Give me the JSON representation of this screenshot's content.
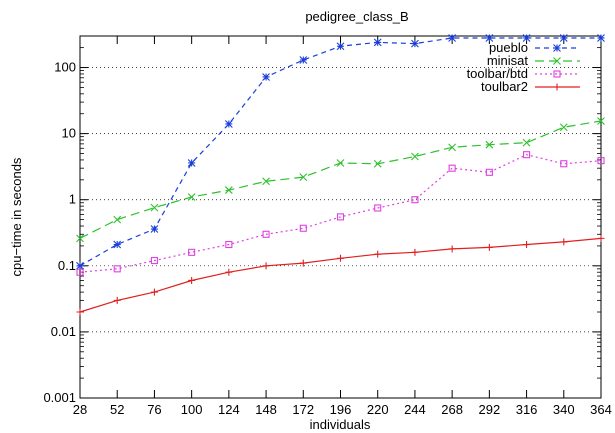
{
  "chart_data": {
    "type": "line",
    "title": "pedigree_class_B",
    "xlabel": "individuals",
    "ylabel": "cpu−time in seconds",
    "yscale": "log",
    "ylim": [
      0.001,
      300
    ],
    "x_ticks": [
      28,
      52,
      76,
      100,
      124,
      148,
      172,
      196,
      220,
      244,
      268,
      292,
      316,
      340,
      364
    ],
    "y_ticks": [
      {
        "value": 0.001,
        "label": "0.001"
      },
      {
        "value": 0.01,
        "label": "0.01"
      },
      {
        "value": 0.1,
        "label": "0.1"
      },
      {
        "value": 1,
        "label": "1"
      },
      {
        "value": 10,
        "label": "10"
      },
      {
        "value": 100,
        "label": "100"
      }
    ],
    "grid": "horizontal dotted",
    "legend_position": "top-right",
    "x": [
      28,
      52,
      76,
      100,
      124,
      148,
      172,
      196,
      220,
      244,
      268,
      292,
      316,
      340,
      364
    ],
    "series": [
      {
        "name": "pueblo",
        "color": "#1a3fd9",
        "dash": "5,4",
        "marker": "asterisk",
        "values": [
          0.1,
          0.21,
          0.36,
          3.6,
          14,
          72,
          130,
          210,
          240,
          230,
          280,
          280,
          280,
          280,
          280
        ]
      },
      {
        "name": "minisat",
        "color": "#2ec22e",
        "dash": "9,5",
        "marker": "x",
        "values": [
          0.26,
          0.5,
          0.76,
          1.1,
          1.4,
          1.9,
          2.2,
          3.6,
          3.5,
          4.5,
          6.2,
          6.8,
          7.3,
          12.5,
          15.5
        ]
      },
      {
        "name": "toolbar/btd",
        "color": "#e040e0",
        "dash": "2,3",
        "marker": "square",
        "values": [
          0.08,
          0.09,
          0.12,
          0.16,
          0.21,
          0.3,
          0.37,
          0.55,
          0.75,
          1.0,
          3.0,
          2.6,
          4.8,
          3.5,
          3.9
        ]
      },
      {
        "name": "toulbar2",
        "color": "#e02020",
        "dash": "",
        "marker": "plus",
        "values": [
          0.02,
          0.03,
          0.04,
          0.06,
          0.08,
          0.1,
          0.11,
          0.13,
          0.15,
          0.16,
          0.18,
          0.19,
          0.21,
          0.23,
          0.26
        ]
      }
    ]
  }
}
